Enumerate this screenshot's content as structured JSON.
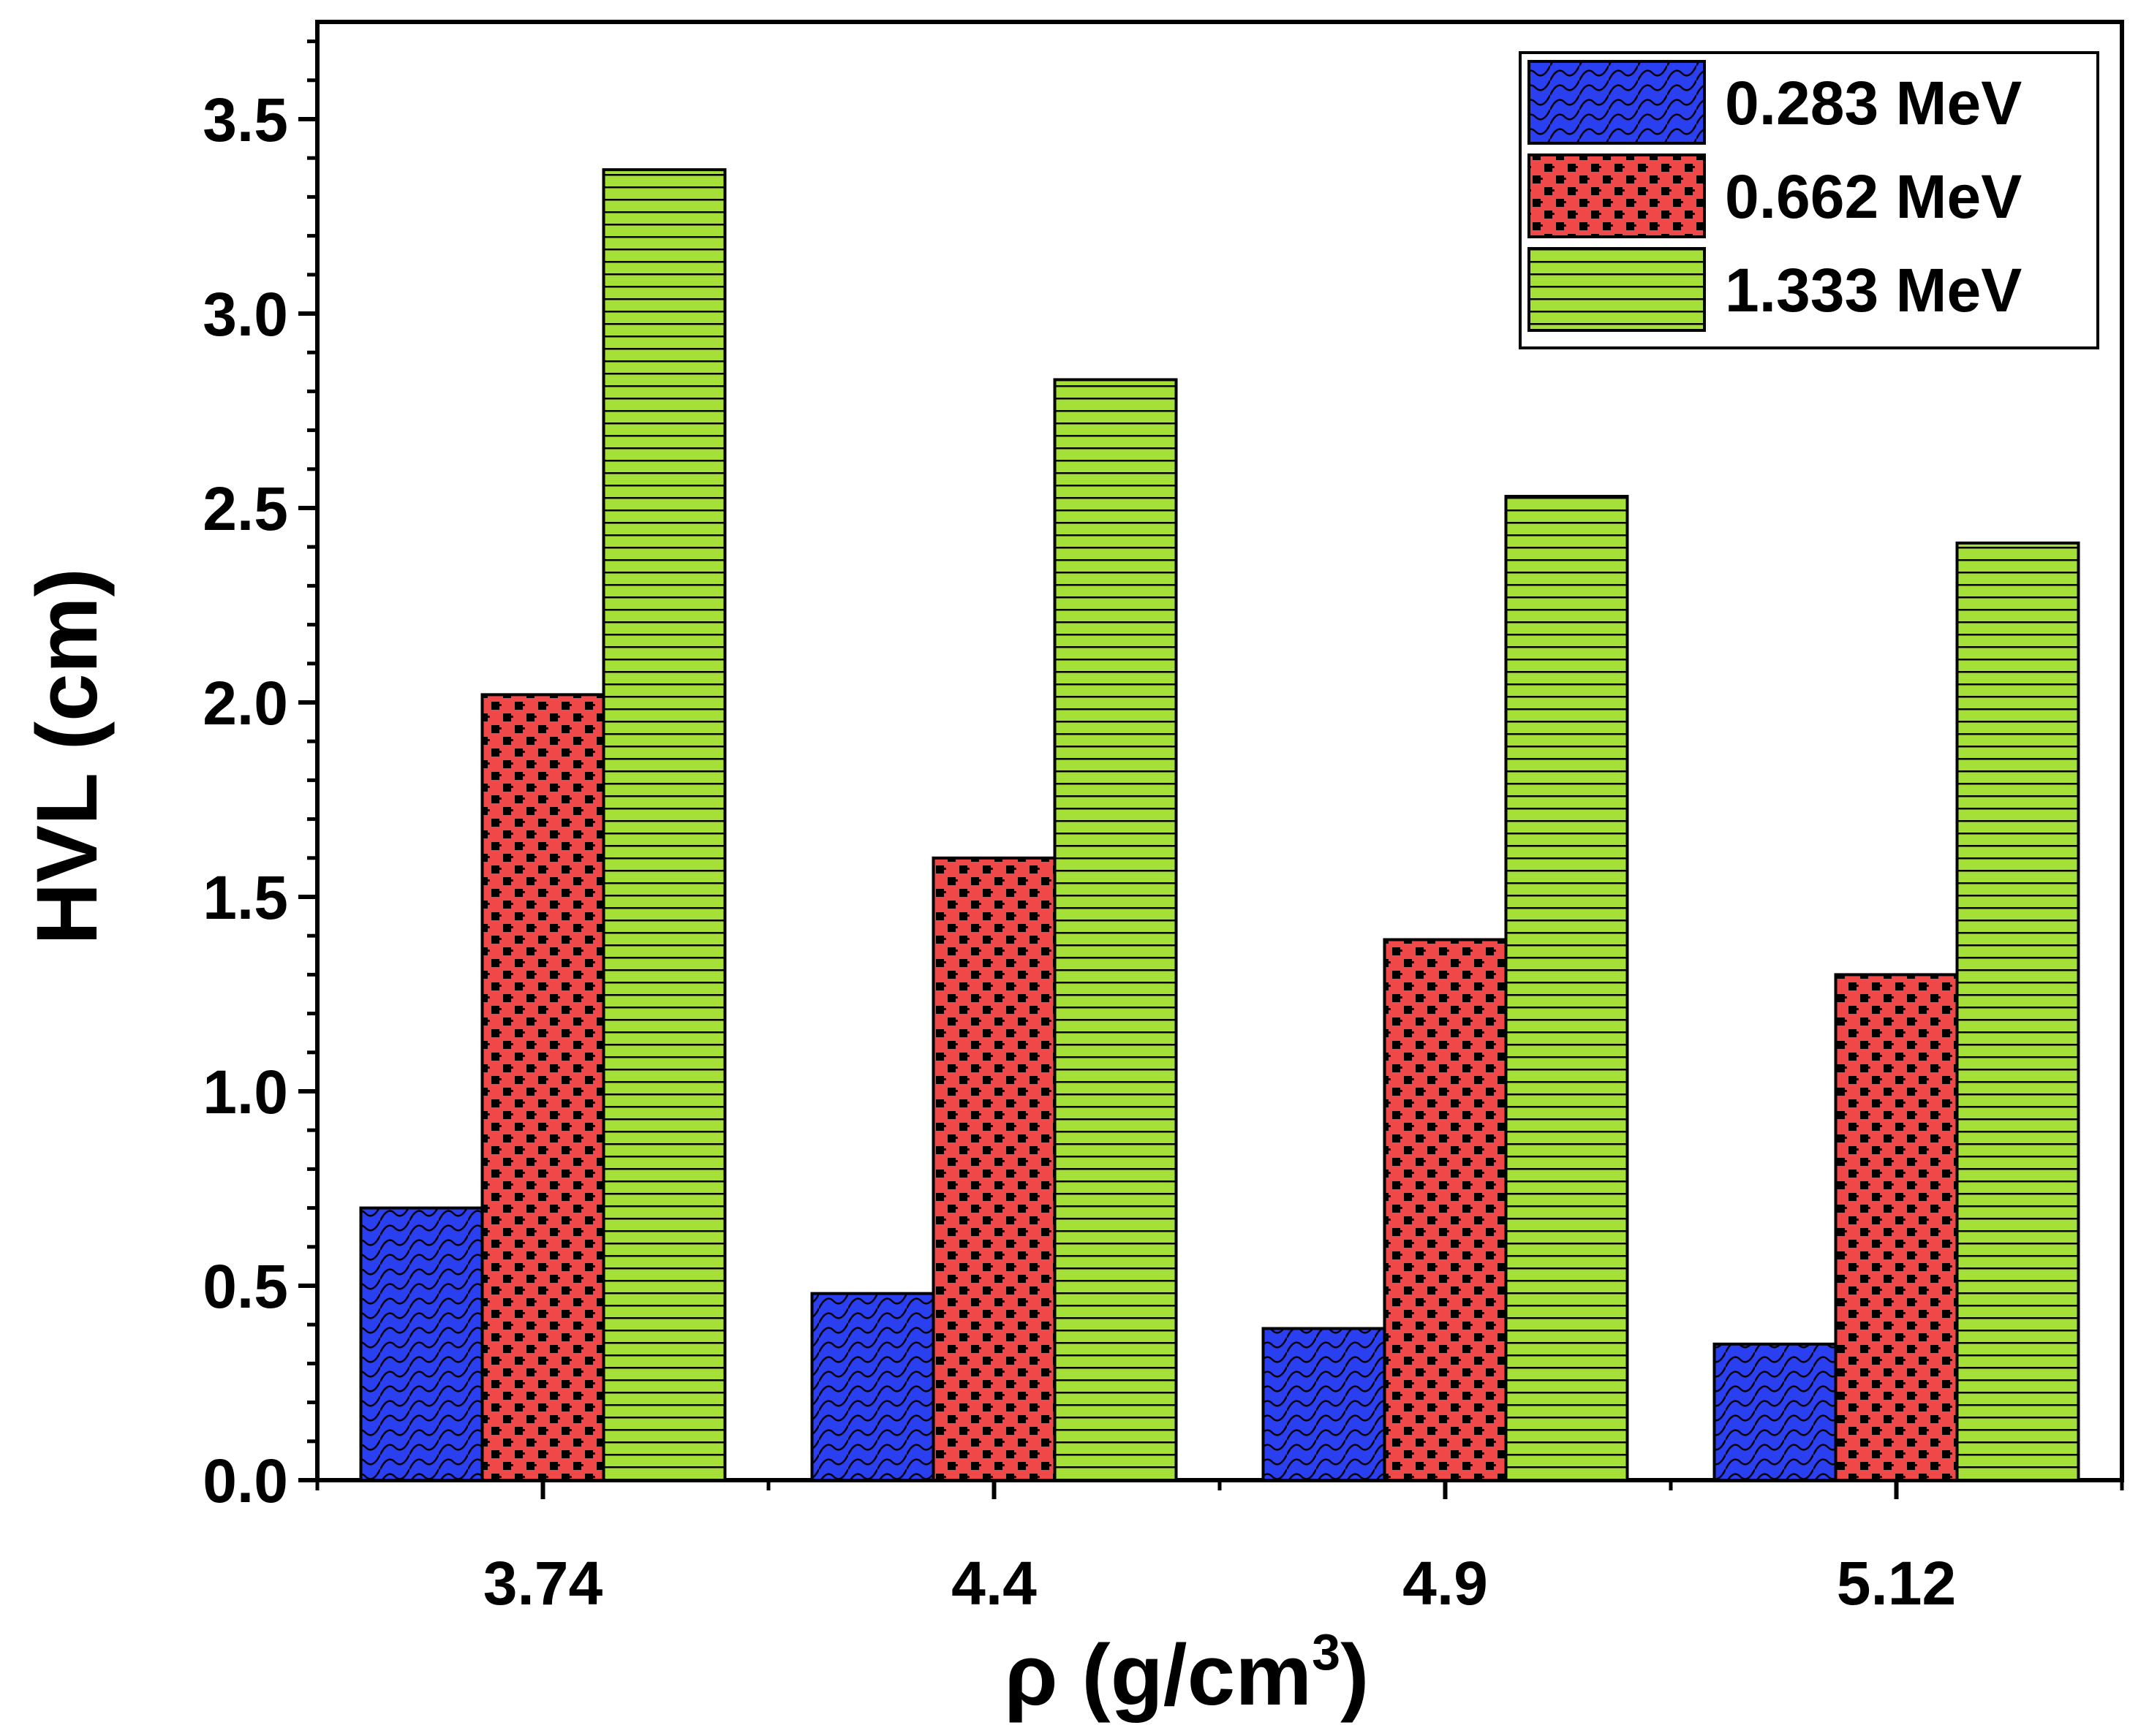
{
  "chart_data": {
    "type": "bar",
    "title": "",
    "xlabel": "ρ (g/cm",
    "xlabel_superscript": "3",
    "xlabel_suffix": ")",
    "ylabel": "HVL (cm)",
    "categories": [
      "3.74",
      "4.4",
      "4.9",
      "5.12"
    ],
    "ylim": [
      0,
      3.75
    ],
    "yticks": [
      "0.0",
      "0.5",
      "1.0",
      "1.5",
      "2.0",
      "2.5",
      "3.0",
      "3.5"
    ],
    "legend_position": "top-right",
    "series": [
      {
        "name": "0.283 MeV",
        "color": "#2a3ff0",
        "pattern": "scale-icon",
        "values": [
          0.7,
          0.48,
          0.39,
          0.35
        ]
      },
      {
        "name": "0.662 MeV",
        "color": "#f04848",
        "pattern": "checker-icon",
        "values": [
          2.02,
          1.6,
          1.39,
          1.3
        ]
      },
      {
        "name": "1.333 MeV",
        "color": "#a4e038",
        "pattern": "horizontal-stripes-icon",
        "values": [
          3.37,
          2.83,
          2.53,
          2.41
        ]
      }
    ]
  }
}
